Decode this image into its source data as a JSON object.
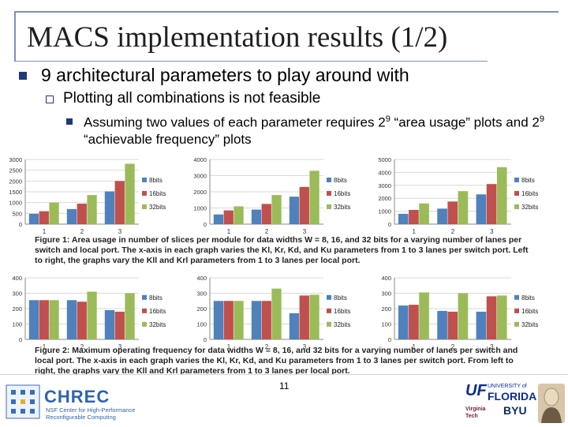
{
  "title": "MACS implementation results (1/2)",
  "bullets": {
    "level1": "9 architectural parameters to play around with",
    "level2": "Plotting all combinations is not feasible",
    "level3_a": "Assuming two values of each parameter requires 2",
    "level3_sup1": "9",
    "level3_b": " “area usage” plots and 2",
    "level3_sup2": "9",
    "level3_c": " “achievable frequency” plots"
  },
  "figure1_caption": "Figure 1:  Area usage in number of slices per module for data widths W = 8, 16, and 32 bits for a varying number of lanes per switch and local port. The x-axis in each graph varies the Kl, Kr, Kd, and Ku parameters from 1 to 3 lanes per switch port. Left to right, the graphs vary the Kll and Krl parameters from 1 to 3 lanes per local port.",
  "figure2_caption": "Figure 2:  Maximum operating frequency for data widths W = 8, 16, and 32 bits for a varying number of lanes per switch and local port. The x-axis in each graph varies the Kl, Kr, Kd, and Ku parameters from 1 to 3 lanes per switch port. From left to right, the graphs vary the Kll and Krl parameters from 1 to 3 lanes per local port.",
  "page_number": "11",
  "footer": {
    "chrec_name": "CHREC",
    "chrec_sub1": "NSF Center for High-Performance",
    "chrec_sub2": "Reconfigurable Computing",
    "uf_1": "UNIVERSITY of",
    "uf_2": "FLORIDA",
    "byu": "BYU",
    "vt": "Virginia Tech"
  },
  "colors": {
    "series8": "#4f81bd",
    "series16": "#c0504d",
    "series32": "#9bbb59"
  },
  "chart_data": [
    {
      "type": "bar",
      "categories": [
        "1",
        "2",
        "3"
      ],
      "ylim": [
        0,
        3000
      ],
      "yticks": [
        0,
        500,
        1000,
        1500,
        2000,
        2500,
        3000
      ],
      "series": [
        {
          "name": "8bits",
          "values": [
            480,
            700,
            1520
          ]
        },
        {
          "name": "16bits",
          "values": [
            600,
            950,
            2000
          ]
        },
        {
          "name": "32bits",
          "values": [
            1000,
            1350,
            2800
          ]
        }
      ]
    },
    {
      "type": "bar",
      "categories": [
        "1",
        "2",
        "3"
      ],
      "ylim": [
        0,
        4000
      ],
      "yticks": [
        0,
        1000,
        2000,
        3000,
        4000
      ],
      "series": [
        {
          "name": "8bits",
          "values": [
            600,
            900,
            1700
          ]
        },
        {
          "name": "16bits",
          "values": [
            850,
            1250,
            2300
          ]
        },
        {
          "name": "32bits",
          "values": [
            1100,
            1800,
            3300
          ]
        }
      ]
    },
    {
      "type": "bar",
      "categories": [
        "1",
        "2",
        "3"
      ],
      "ylim": [
        0,
        5000
      ],
      "yticks": [
        0,
        1000,
        2000,
        3000,
        4000,
        5000
      ],
      "series": [
        {
          "name": "8bits",
          "values": [
            800,
            1200,
            2300
          ]
        },
        {
          "name": "16bits",
          "values": [
            1100,
            1750,
            3100
          ]
        },
        {
          "name": "32bits",
          "values": [
            1600,
            2550,
            4400
          ]
        }
      ]
    },
    {
      "type": "bar",
      "categories": [
        "1",
        "2",
        "3"
      ],
      "ylim": [
        0,
        400
      ],
      "yticks": [
        0,
        100,
        200,
        300,
        400
      ],
      "series": [
        {
          "name": "8bits",
          "values": [
            255,
            255,
            190
          ]
        },
        {
          "name": "16bits",
          "values": [
            255,
            245,
            180
          ]
        },
        {
          "name": "32bits",
          "values": [
            255,
            310,
            300
          ]
        }
      ]
    },
    {
      "type": "bar",
      "categories": [
        "1",
        "2",
        "3"
      ],
      "ylim": [
        0,
        400
      ],
      "yticks": [
        0,
        100,
        200,
        300,
        400
      ],
      "series": [
        {
          "name": "8bits",
          "values": [
            250,
            250,
            170
          ]
        },
        {
          "name": "16bits",
          "values": [
            250,
            250,
            285
          ]
        },
        {
          "name": "32bits",
          "values": [
            250,
            330,
            290
          ]
        }
      ]
    },
    {
      "type": "bar",
      "categories": [
        "1",
        "2",
        "3"
      ],
      "ylim": [
        0,
        400
      ],
      "yticks": [
        0,
        100,
        200,
        300,
        400
      ],
      "series": [
        {
          "name": "8bits",
          "values": [
            220,
            185,
            180
          ]
        },
        {
          "name": "16bits",
          "values": [
            225,
            180,
            280
          ]
        },
        {
          "name": "32bits",
          "values": [
            305,
            300,
            285
          ]
        }
      ]
    }
  ]
}
